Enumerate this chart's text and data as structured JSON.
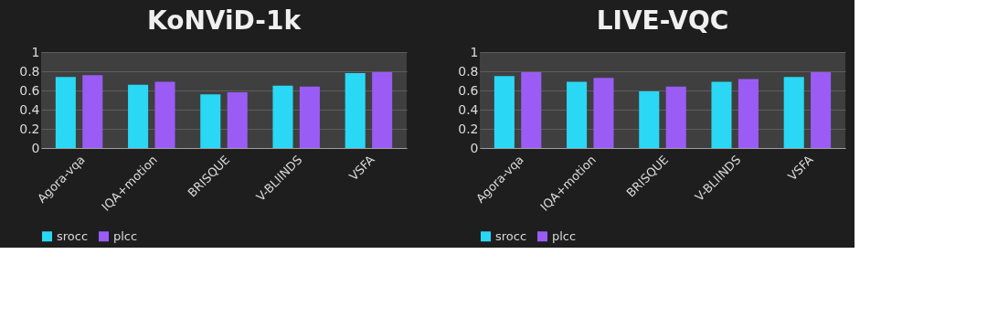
{
  "chart_data": [
    {
      "type": "bar",
      "title": "KoNViD-1k",
      "categories": [
        "Agora-vqa",
        "IQA+motion",
        "BRISQUE",
        "V-BLIINDS",
        "VSFA"
      ],
      "ylim": [
        0,
        1
      ],
      "yticks": [
        0,
        0.2,
        0.4,
        0.6,
        0.8,
        1
      ],
      "grid": "y",
      "legend": "bottom",
      "series": [
        {
          "name": "srocc",
          "color": "#2ad8f5",
          "values": [
            0.74,
            0.66,
            0.56,
            0.65,
            0.78
          ]
        },
        {
          "name": "plcc",
          "color": "#9a5cf5",
          "values": [
            0.76,
            0.69,
            0.58,
            0.64,
            0.79
          ]
        }
      ]
    },
    {
      "type": "bar",
      "title": "LIVE-VQC",
      "categories": [
        "Agora-vqa",
        "IQA+motion",
        "BRISQUE",
        "V-BLIINDS",
        "VSFA"
      ],
      "ylim": [
        0,
        1
      ],
      "yticks": [
        0,
        0.2,
        0.4,
        0.6,
        0.8,
        1
      ],
      "grid": "y",
      "legend": "bottom",
      "series": [
        {
          "name": "srocc",
          "color": "#2ad8f5",
          "values": [
            0.75,
            0.69,
            0.59,
            0.69,
            0.74
          ]
        },
        {
          "name": "plcc",
          "color": "#9a5cf5",
          "values": [
            0.79,
            0.73,
            0.64,
            0.72,
            0.79
          ]
        }
      ]
    }
  ]
}
